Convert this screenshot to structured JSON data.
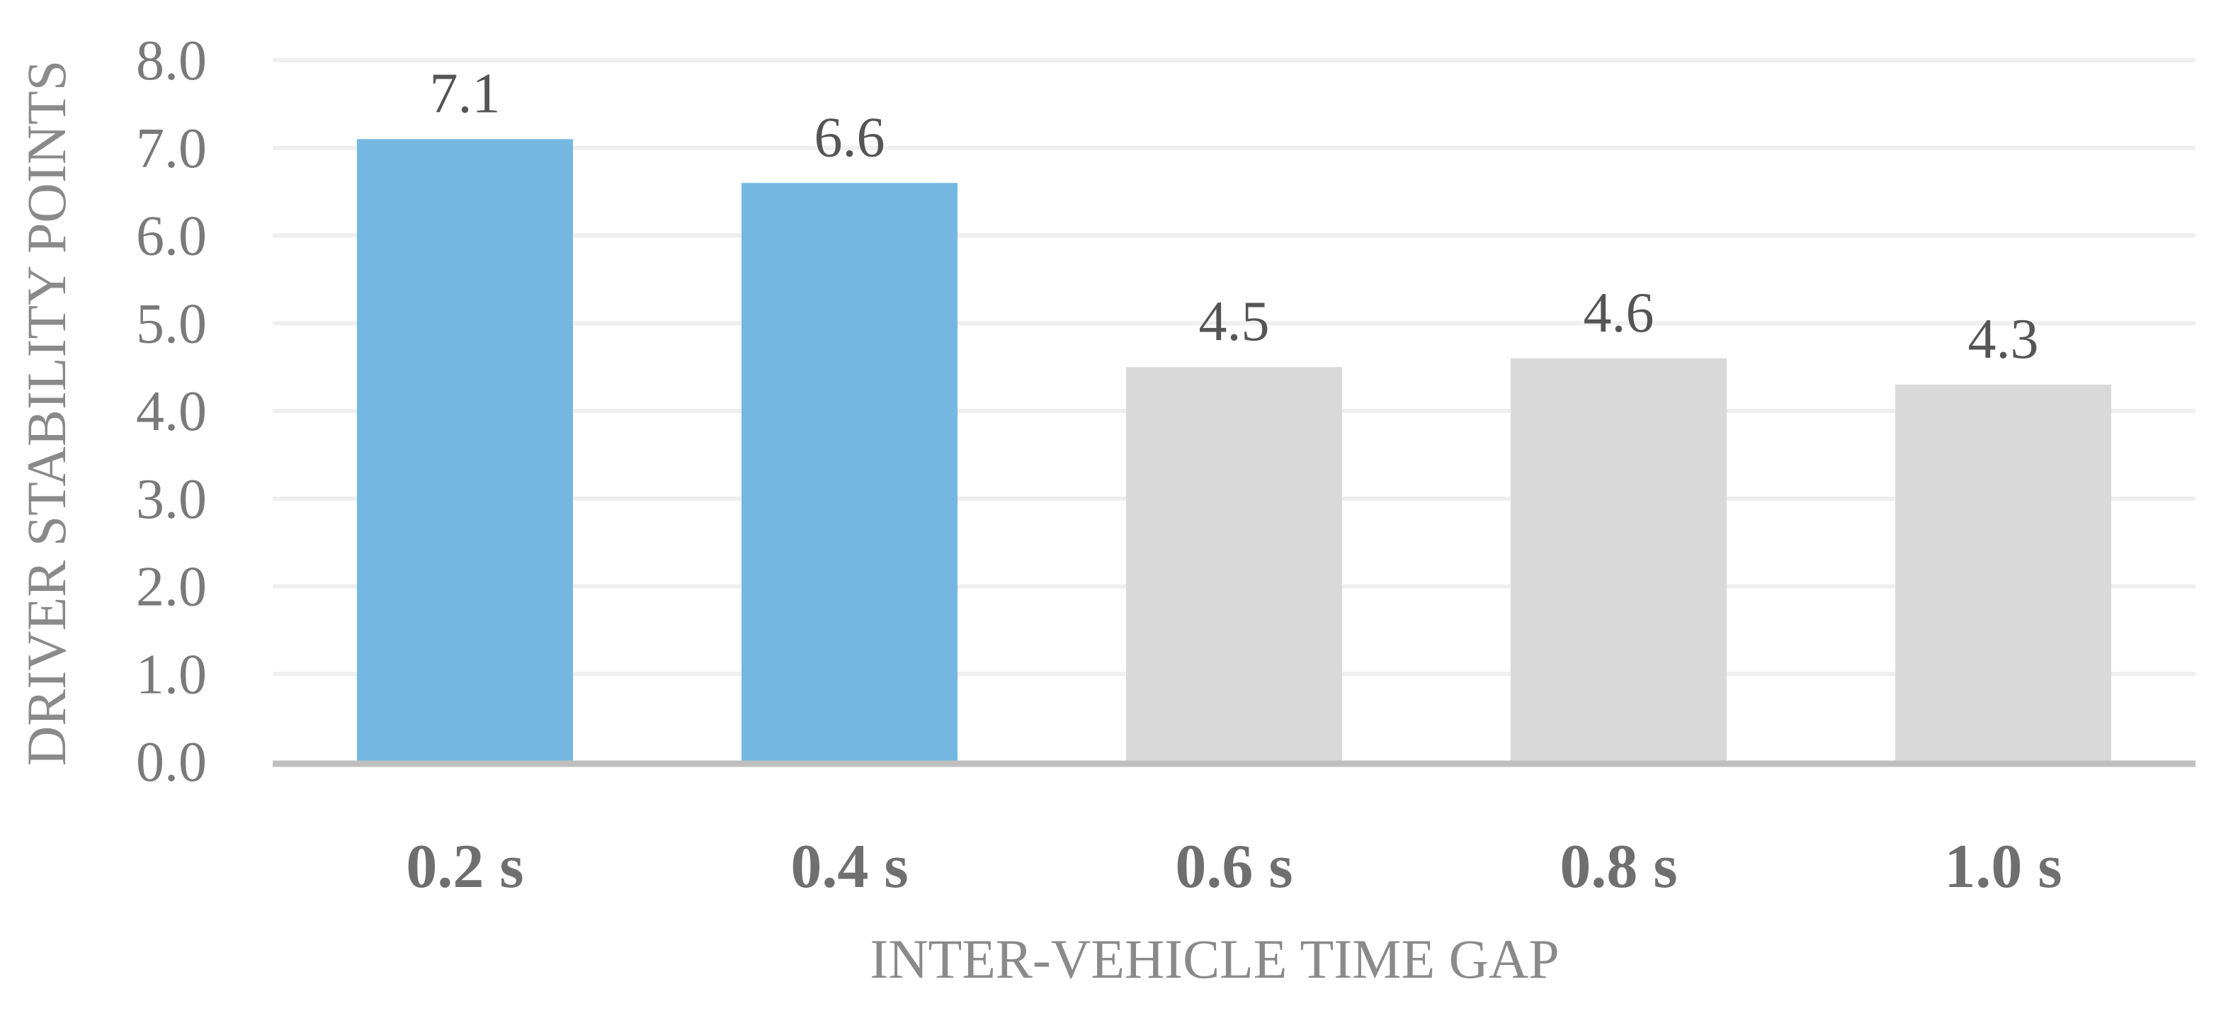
{
  "chart_data": {
    "type": "bar",
    "title": "",
    "xlabel": "INTER-VEHICLE TIME GAP",
    "ylabel": "DRIVER STABILITY POINTS",
    "categories": [
      "0.2 s",
      "0.4 s",
      "0.6 s",
      "0.8 s",
      "1.0 s"
    ],
    "values": [
      7.1,
      6.6,
      4.5,
      4.6,
      4.3
    ],
    "data_labels": [
      "7.1",
      "6.6",
      "4.5",
      "4.6",
      "4.3"
    ],
    "bar_colors": [
      "#74b8e2",
      "#74b8e2",
      "#d9d9d9",
      "#d9d9d9",
      "#d9d9d9"
    ],
    "ylim": [
      0,
      8
    ],
    "yticks": [
      0,
      1,
      2,
      3,
      4,
      5,
      6,
      7,
      8
    ],
    "ytick_labels": [
      "0.0",
      "1.0",
      "2.0",
      "3.0",
      "4.0",
      "5.0",
      "6.0",
      "7.0",
      "8.0"
    ],
    "grid": true,
    "legend": "none",
    "gridline_color": "#efefef",
    "axis_color": "#bfbfbf"
  }
}
